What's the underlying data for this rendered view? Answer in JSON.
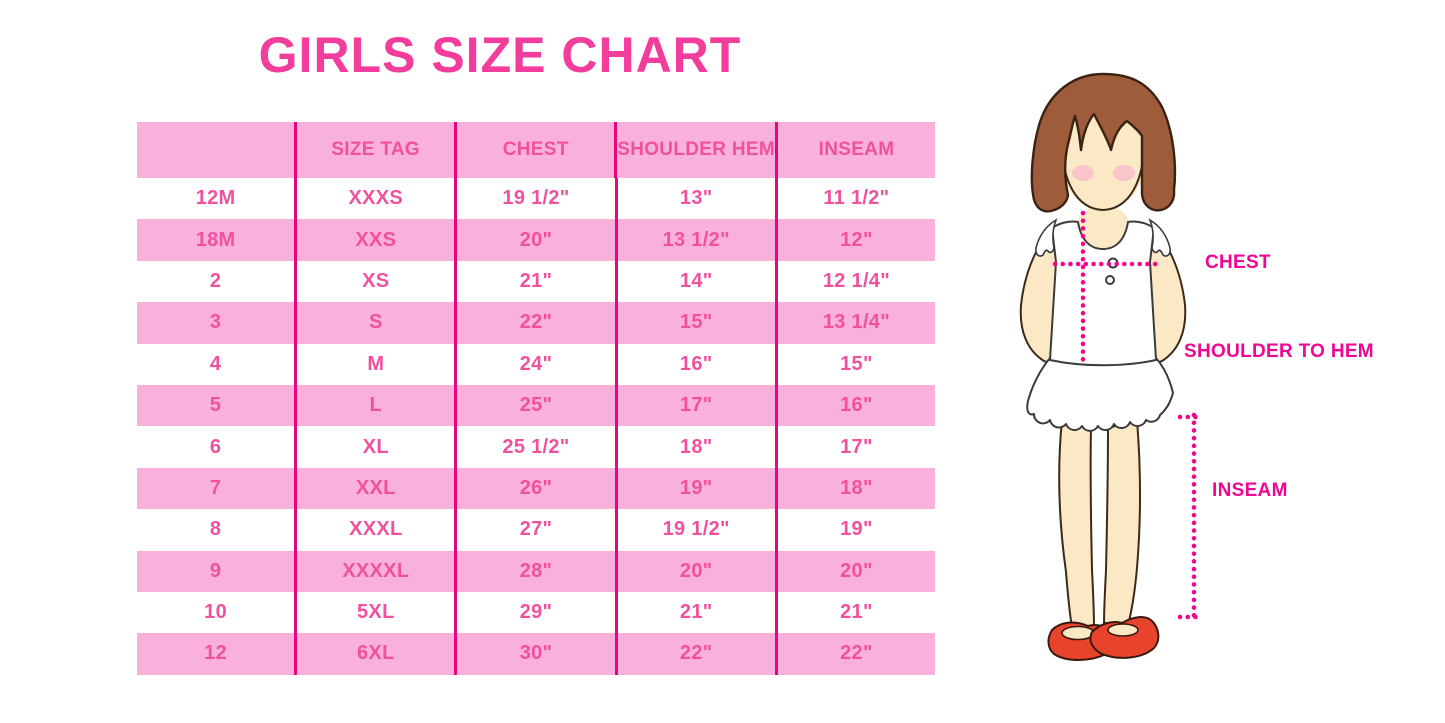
{
  "page": {
    "title": "GIRLS SIZE CHART"
  },
  "colors": {
    "title_pink": "#F23D9C",
    "row_stripe_pink": "#F9B1DB",
    "cell_text_pink": "#F0519F",
    "grid_line_magenta": "#E2077F",
    "label_magenta": "#EE0793",
    "measure_line_magenta": "#F2058C",
    "hair_brown": "#9E5C3B",
    "skin": "#FBE8C4",
    "shoe_red": "#E8432B"
  },
  "table": {
    "headers": [
      "",
      "SIZE TAG",
      "CHEST",
      "SHOULDER HEM",
      "INSEAM"
    ],
    "rows": [
      [
        "12M",
        "XXXS",
        "19 1/2\"",
        "13\"",
        "11 1/2\""
      ],
      [
        "18M",
        "XXS",
        "20\"",
        "13 1/2\"",
        "12\""
      ],
      [
        "2",
        "XS",
        "21\"",
        "14\"",
        "12 1/4\""
      ],
      [
        "3",
        "S",
        "22\"",
        "15\"",
        "13 1/4\""
      ],
      [
        "4",
        "M",
        "24\"",
        "16\"",
        "15\""
      ],
      [
        "5",
        "L",
        "25\"",
        "17\"",
        "16\""
      ],
      [
        "6",
        "XL",
        "25 1/2\"",
        "18\"",
        "17\""
      ],
      [
        "7",
        "XXL",
        "26\"",
        "19\"",
        "18\""
      ],
      [
        "8",
        "XXXL",
        "27\"",
        "19 1/2\"",
        "19\""
      ],
      [
        "9",
        "XXXXL",
        "28\"",
        "20\"",
        "20\""
      ],
      [
        "10",
        "5XL",
        "29\"",
        "21\"",
        "21\""
      ],
      [
        "12",
        "6XL",
        "30\"",
        "22\"",
        "22\""
      ]
    ]
  },
  "figure": {
    "labels": {
      "chest": "CHEST",
      "shoulder_to_hem": "SHOULDER TO HEM",
      "inseam": "INSEAM"
    }
  }
}
